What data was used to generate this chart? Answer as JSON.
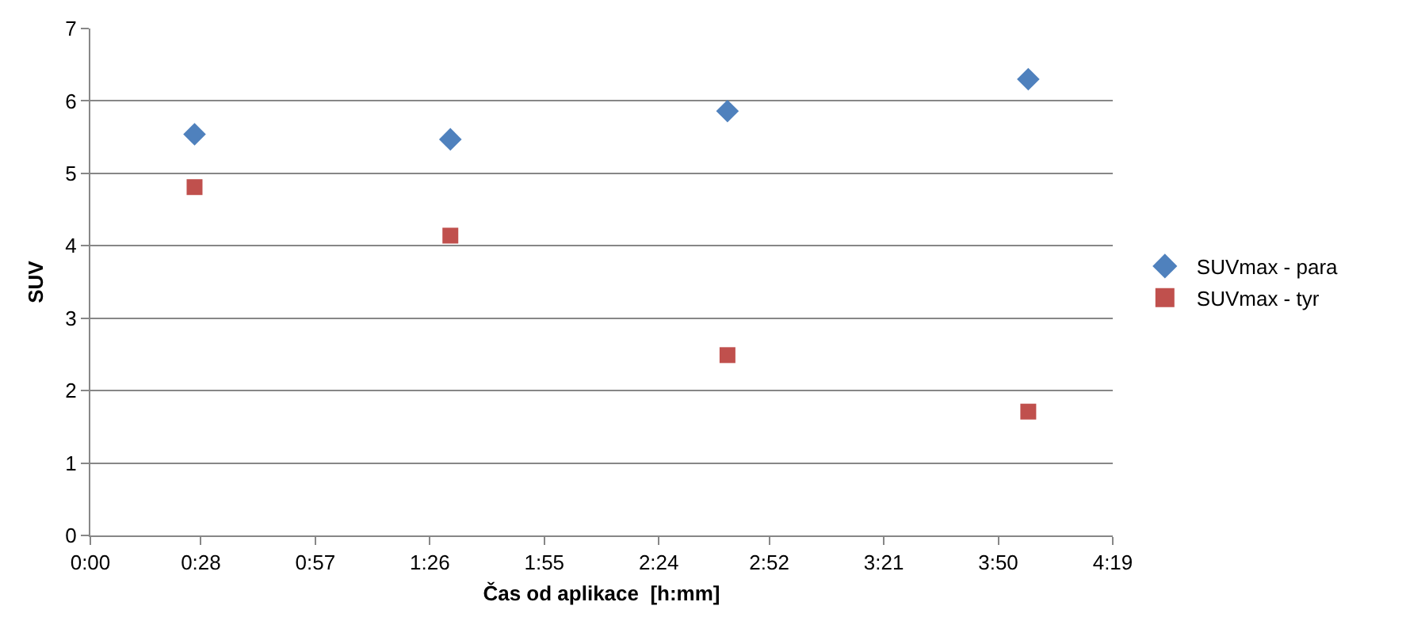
{
  "chart_data": {
    "type": "scatter",
    "xlabel": "Čas od aplikace  [h:mm]",
    "ylabel": "SUV",
    "series": [
      {
        "name": "SUVmax - para",
        "color": "#4f81bd",
        "marker": "diamond",
        "x": [
          0.44,
          1.52,
          2.69,
          3.96
        ],
        "values": [
          5.54,
          5.47,
          5.86,
          6.3
        ]
      },
      {
        "name": "SUVmax - tyr",
        "color": "#c0504d",
        "marker": "square",
        "x": [
          0.44,
          1.52,
          2.69,
          3.96
        ],
        "values": [
          4.81,
          4.14,
          2.49,
          1.71
        ]
      }
    ],
    "xlim": [
      0,
      4.3167
    ],
    "xticks": [
      {
        "value": 0,
        "label": "0:00"
      },
      {
        "value": 0.4667,
        "label": "0:28"
      },
      {
        "value": 0.95,
        "label": "0:57"
      },
      {
        "value": 1.4333,
        "label": "1:26"
      },
      {
        "value": 1.9167,
        "label": "1:55"
      },
      {
        "value": 2.4,
        "label": "2:24"
      },
      {
        "value": 2.8667,
        "label": "2:52"
      },
      {
        "value": 3.35,
        "label": "3:21"
      },
      {
        "value": 3.8333,
        "label": "3:50"
      },
      {
        "value": 4.3167,
        "label": "4:19"
      }
    ],
    "ylim": [
      0,
      7
    ],
    "yticks": [
      0,
      1,
      2,
      3,
      4,
      5,
      6,
      7
    ],
    "grid": "y",
    "legend": "right"
  }
}
